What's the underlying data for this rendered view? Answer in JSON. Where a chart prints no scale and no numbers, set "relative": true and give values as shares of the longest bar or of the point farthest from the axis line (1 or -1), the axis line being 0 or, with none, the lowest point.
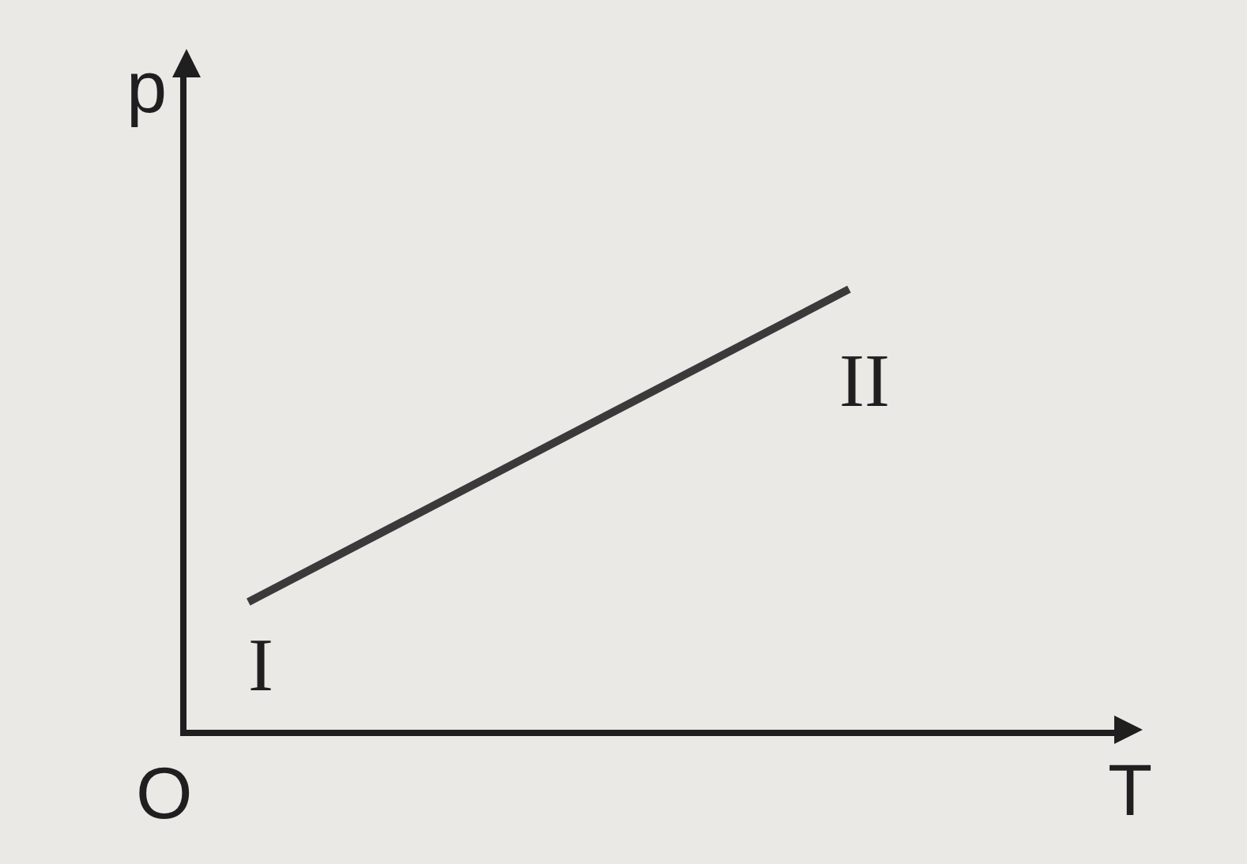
{
  "chart_data": {
    "type": "line",
    "relative": true,
    "xlabel": "T",
    "ylabel": "p",
    "categories": [
      null,
      null
    ],
    "series": [
      {
        "color": "#3a3a3a",
        "values": [
          0.29,
          1
        ]
      }
    ],
    "annotations": [
      "I",
      "II",
      "O"
    ],
    "marker": "none",
    "line_style": "solid"
  }
}
